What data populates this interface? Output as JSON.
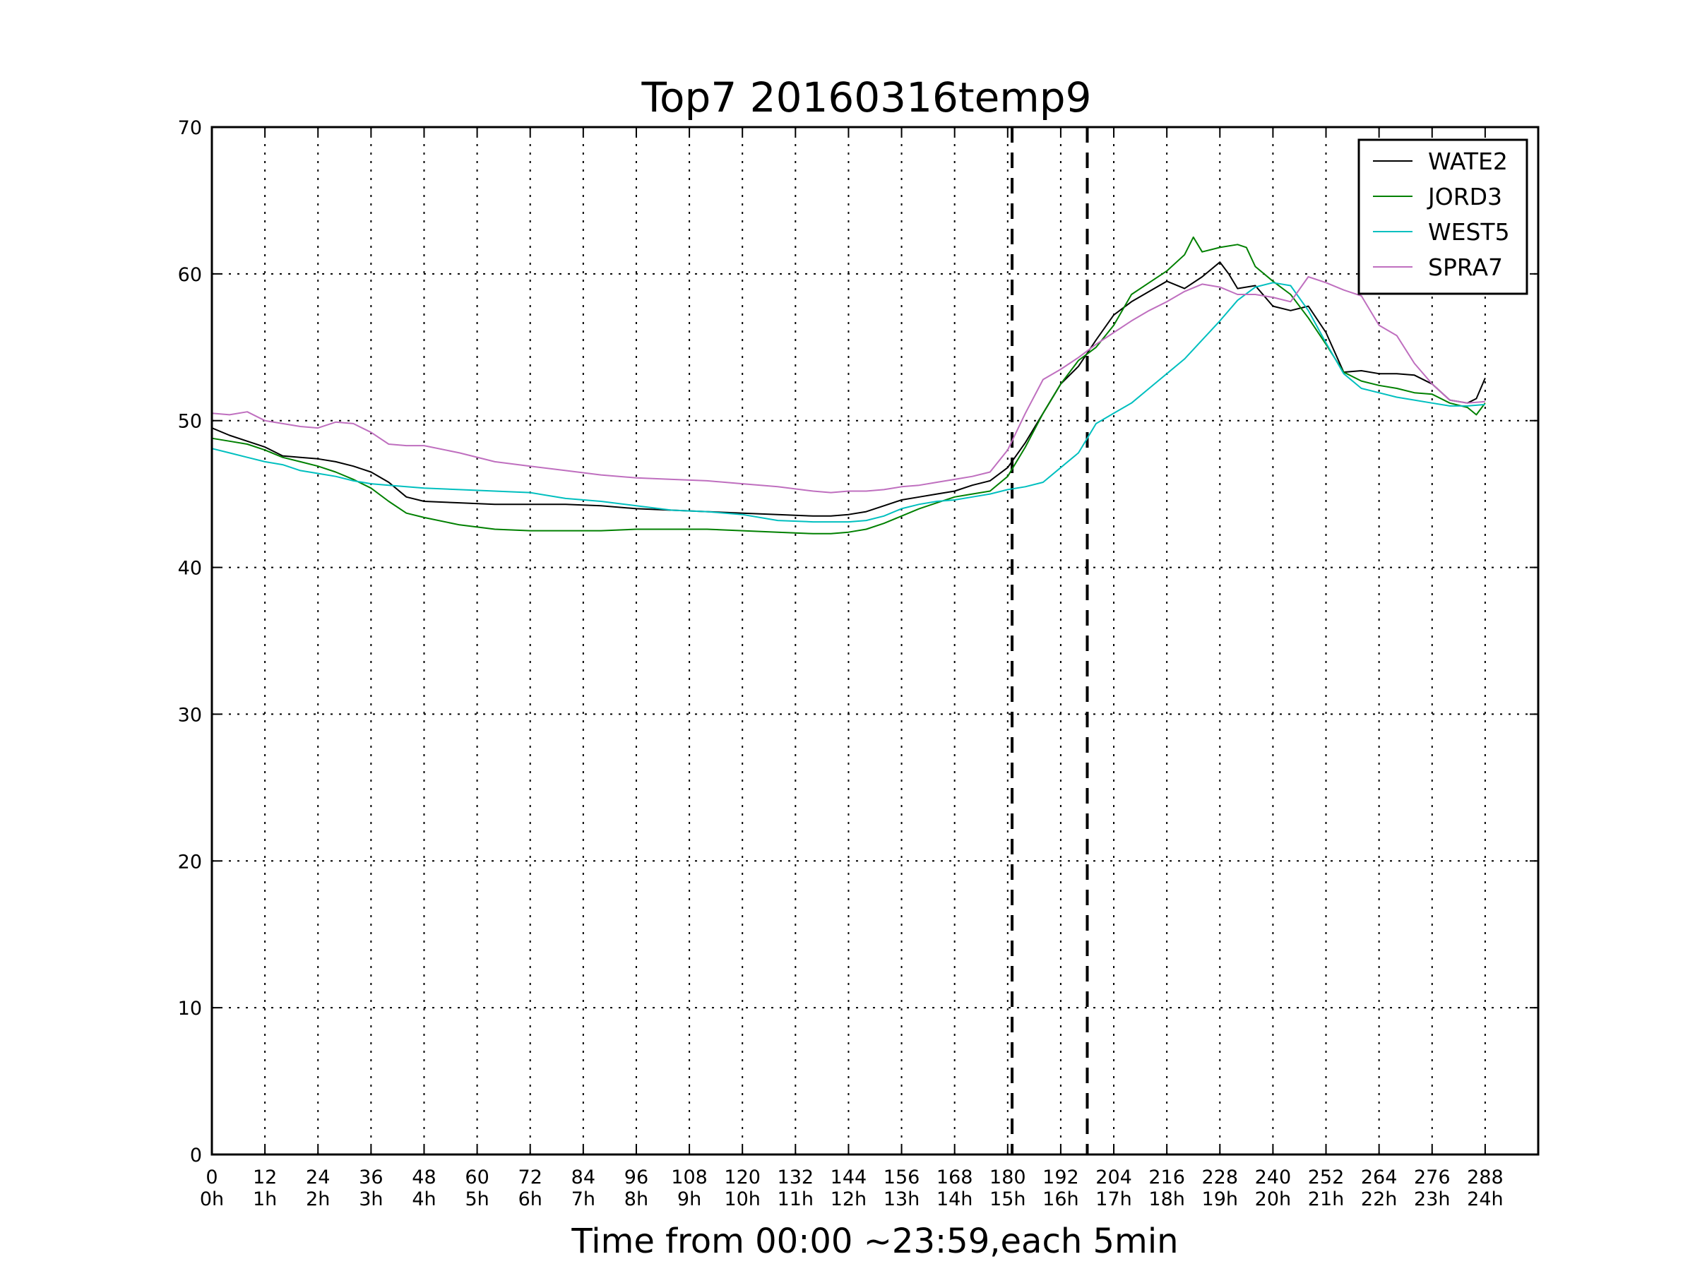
{
  "chart_data": {
    "type": "line",
    "title": "Top7 20160316temp9",
    "xlabel": "Time from 00:00 ~23:59,each 5min",
    "ylabel": "",
    "xlim": [
      0,
      300
    ],
    "ylim": [
      0,
      70
    ],
    "grid": true,
    "legend_position": "top-right",
    "x_ticks": [
      0,
      12,
      24,
      36,
      48,
      60,
      72,
      84,
      96,
      108,
      120,
      132,
      144,
      156,
      168,
      180,
      192,
      204,
      216,
      228,
      240,
      252,
      264,
      276,
      288
    ],
    "x_tick_labels": [
      "0",
      "12",
      "24",
      "36",
      "48",
      "60",
      "72",
      "84",
      "96",
      "108",
      "120",
      "132",
      "144",
      "156",
      "168",
      "180",
      "192",
      "204",
      "216",
      "228",
      "240",
      "252",
      "264",
      "276",
      "288"
    ],
    "x_tick_hours": [
      "0h",
      "1h",
      "2h",
      "3h",
      "4h",
      "5h",
      "6h",
      "7h",
      "8h",
      "9h",
      "10h",
      "11h",
      "12h",
      "13h",
      "14h",
      "15h",
      "16h",
      "17h",
      "18h",
      "19h",
      "20h",
      "21h",
      "22h",
      "23h",
      "24h"
    ],
    "y_ticks": [
      0,
      10,
      20,
      30,
      40,
      50,
      60,
      70
    ],
    "y_tick_labels": [
      "0",
      "10",
      "20",
      "30",
      "40",
      "50",
      "60",
      "70"
    ],
    "vertical_markers": [
      181,
      198
    ],
    "series": [
      {
        "name": "WATE2",
        "color": "#000000",
        "x": [
          0,
          4,
          8,
          12,
          16,
          20,
          24,
          28,
          32,
          36,
          40,
          44,
          48,
          56,
          64,
          72,
          80,
          88,
          96,
          104,
          112,
          120,
          128,
          136,
          140,
          144,
          148,
          152,
          156,
          160,
          164,
          168,
          172,
          176,
          180,
          184,
          188,
          192,
          196,
          200,
          204,
          208,
          212,
          216,
          220,
          224,
          228,
          230,
          232,
          236,
          240,
          244,
          248,
          252,
          256,
          260,
          264,
          268,
          272,
          276,
          280,
          284,
          286,
          288
        ],
        "y": [
          49.5,
          49,
          48.6,
          48.2,
          47.6,
          47.5,
          47.4,
          47.2,
          46.9,
          46.5,
          45.8,
          44.8,
          44.5,
          44.4,
          44.3,
          44.3,
          44.3,
          44.2,
          44,
          43.9,
          43.8,
          43.7,
          43.6,
          43.5,
          43.5,
          43.6,
          43.8,
          44.2,
          44.6,
          44.8,
          45,
          45.2,
          45.6,
          45.9,
          46.8,
          48.5,
          50.5,
          52.5,
          53.7,
          55.5,
          57.2,
          58.1,
          58.8,
          59.5,
          59,
          59.8,
          60.8,
          60,
          59,
          59.2,
          57.8,
          57.5,
          57.8,
          56,
          53.3,
          53.4,
          53.2,
          53.2,
          53.1,
          52.5,
          51.4,
          51.2,
          51.5,
          52.9
        ]
      },
      {
        "name": "JORD3",
        "color": "#008000",
        "x": [
          0,
          4,
          8,
          12,
          16,
          20,
          24,
          28,
          32,
          36,
          40,
          44,
          48,
          56,
          64,
          72,
          80,
          88,
          96,
          104,
          112,
          120,
          128,
          136,
          140,
          144,
          148,
          152,
          156,
          160,
          164,
          168,
          172,
          176,
          180,
          184,
          188,
          192,
          196,
          200,
          204,
          208,
          212,
          216,
          220,
          222,
          224,
          228,
          232,
          234,
          236,
          240,
          244,
          248,
          252,
          256,
          260,
          264,
          268,
          272,
          276,
          280,
          284,
          286,
          288
        ],
        "y": [
          48.8,
          48.6,
          48.4,
          48,
          47.5,
          47.2,
          46.9,
          46.5,
          46,
          45.4,
          44.5,
          43.7,
          43.4,
          42.9,
          42.6,
          42.5,
          42.5,
          42.5,
          42.6,
          42.6,
          42.6,
          42.5,
          42.4,
          42.3,
          42.3,
          42.4,
          42.6,
          43,
          43.5,
          44,
          44.4,
          44.8,
          45,
          45.2,
          46.2,
          48.2,
          50.5,
          52.5,
          54.1,
          55,
          56.5,
          58.6,
          59.4,
          60.2,
          61.3,
          62.5,
          61.5,
          61.8,
          62,
          61.8,
          60.5,
          59.5,
          58.6,
          57,
          55.2,
          53.3,
          52.7,
          52.4,
          52.2,
          51.9,
          51.8,
          51.2,
          50.9,
          50.4,
          51.2
        ]
      },
      {
        "name": "WEST5",
        "color": "#00BFBF",
        "x": [
          0,
          4,
          8,
          12,
          16,
          20,
          24,
          28,
          32,
          36,
          40,
          44,
          48,
          56,
          64,
          72,
          80,
          88,
          96,
          104,
          112,
          120,
          128,
          136,
          140,
          144,
          148,
          152,
          156,
          160,
          164,
          168,
          172,
          176,
          180,
          184,
          188,
          192,
          196,
          200,
          204,
          208,
          212,
          216,
          220,
          224,
          228,
          232,
          236,
          240,
          244,
          248,
          252,
          256,
          260,
          264,
          268,
          272,
          276,
          280,
          284,
          288
        ],
        "y": [
          48.1,
          47.8,
          47.5,
          47.2,
          47,
          46.6,
          46.4,
          46.2,
          45.9,
          45.7,
          45.6,
          45.5,
          45.4,
          45.3,
          45.2,
          45.1,
          44.7,
          44.5,
          44.2,
          43.9,
          43.8,
          43.6,
          43.2,
          43.1,
          43.1,
          43.1,
          43.2,
          43.5,
          44,
          44.3,
          44.5,
          44.6,
          44.8,
          45,
          45.3,
          45.5,
          45.8,
          46.8,
          47.8,
          49.8,
          50.5,
          51.2,
          52.2,
          53.2,
          54.2,
          55.5,
          56.8,
          58.2,
          59.1,
          59.4,
          59.2,
          57.5,
          55.3,
          53.2,
          52.2,
          51.9,
          51.6,
          51.4,
          51.2,
          51,
          51,
          51.1
        ]
      },
      {
        "name": "SPRA7",
        "color": "#BF6FBF",
        "x": [
          0,
          4,
          8,
          12,
          16,
          20,
          24,
          28,
          32,
          36,
          40,
          44,
          48,
          56,
          64,
          72,
          80,
          88,
          96,
          104,
          112,
          120,
          128,
          136,
          140,
          144,
          148,
          152,
          156,
          160,
          164,
          168,
          172,
          176,
          180,
          184,
          188,
          192,
          196,
          200,
          204,
          208,
          212,
          216,
          220,
          224,
          228,
          232,
          236,
          240,
          244,
          248,
          252,
          256,
          260,
          264,
          268,
          272,
          276,
          280,
          284,
          288
        ],
        "y": [
          50.5,
          50.4,
          50.6,
          50,
          49.8,
          49.6,
          49.5,
          49.9,
          49.8,
          49.2,
          48.4,
          48.3,
          48.3,
          47.8,
          47.2,
          46.9,
          46.6,
          46.3,
          46.1,
          46,
          45.9,
          45.7,
          45.5,
          45.2,
          45.1,
          45.2,
          45.2,
          45.3,
          45.5,
          45.6,
          45.8,
          46,
          46.2,
          46.5,
          48,
          50.5,
          52.8,
          53.5,
          54.3,
          55.2,
          56,
          56.8,
          57.5,
          58.1,
          58.8,
          59.3,
          59.1,
          58.6,
          58.6,
          58.4,
          58.1,
          59.8,
          59.4,
          58.9,
          58.5,
          56.5,
          55.8,
          53.9,
          52.5,
          51.4,
          51.2,
          51.3
        ]
      }
    ]
  }
}
